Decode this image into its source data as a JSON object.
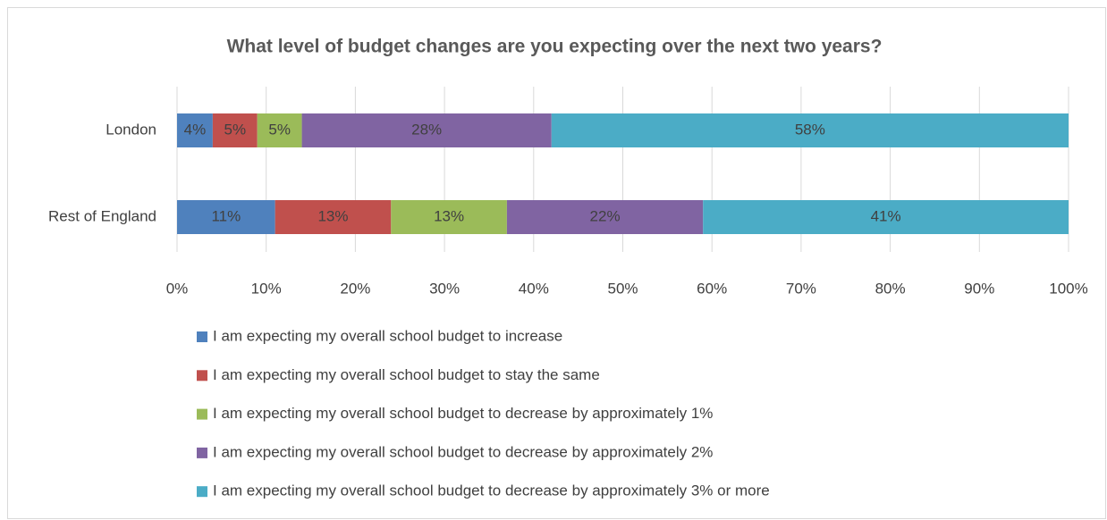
{
  "chart_data": {
    "type": "bar",
    "orientation": "horizontal",
    "stacked": true,
    "title": "What level of budget changes are you expecting over the next two years?",
    "categories": [
      "London",
      "Rest of England"
    ],
    "series": [
      {
        "name": "I am expecting my overall school budget to increase",
        "color": "#4f81bd",
        "values": [
          4,
          11
        ],
        "value_labels": [
          "4%",
          "11%"
        ]
      },
      {
        "name": "I am expecting my overall school budget to stay the same",
        "color": "#c0504d",
        "values": [
          5,
          13
        ],
        "value_labels": [
          "5%",
          "13%"
        ]
      },
      {
        "name": "I am expecting my overall school budget to decrease by approximately 1%",
        "color": "#9bbb59",
        "values": [
          5,
          13
        ],
        "value_labels": [
          "5%",
          "13%"
        ]
      },
      {
        "name": "I am expecting my overall school budget to decrease by approximately 2%",
        "color": "#8064a2",
        "values": [
          28,
          22
        ],
        "value_labels": [
          "28%",
          "22%"
        ]
      },
      {
        "name": "I am expecting my overall school budget to decrease by approximately 3% or more",
        "color": "#4bacc6",
        "values": [
          58,
          41
        ],
        "value_labels": [
          "58%",
          "41%"
        ]
      }
    ],
    "xlim": [
      0,
      100
    ],
    "xticks": [
      {
        "value": 0,
        "label": "0%"
      },
      {
        "value": 10,
        "label": "10%"
      },
      {
        "value": 20,
        "label": "20%"
      },
      {
        "value": 30,
        "label": "30%"
      },
      {
        "value": 40,
        "label": "40%"
      },
      {
        "value": 50,
        "label": "50%"
      },
      {
        "value": 60,
        "label": "60%"
      },
      {
        "value": 70,
        "label": "70%"
      },
      {
        "value": 80,
        "label": "80%"
      },
      {
        "value": 90,
        "label": "90%"
      },
      {
        "value": 100,
        "label": "100%"
      }
    ],
    "grid": true,
    "legend": "bottom"
  }
}
